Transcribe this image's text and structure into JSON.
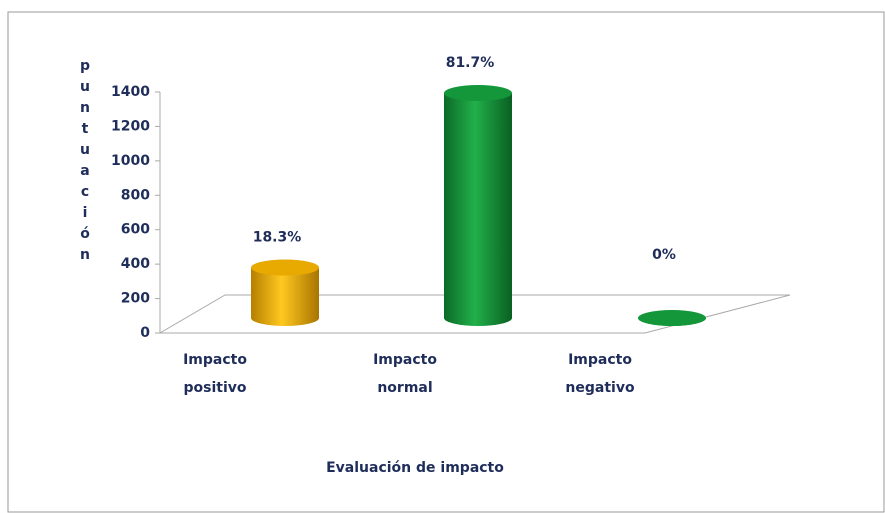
{
  "chart_data": {
    "type": "bar3d",
    "categories": [
      "Impacto positivo",
      "Impacto normal",
      "Impacto negativo"
    ],
    "values": [
      293,
      1307,
      0
    ],
    "annotations": [
      "18.3%",
      "81.7%",
      "0%"
    ],
    "colors": [
      "#e8aa00",
      "#13973a",
      "#13973a"
    ],
    "ylabel": "puntuación",
    "xlabel": "Evaluación de impacto",
    "ylim": [
      0,
      1400
    ],
    "yticks": [
      0,
      200,
      400,
      600,
      800,
      1000,
      1200,
      1400
    ]
  }
}
